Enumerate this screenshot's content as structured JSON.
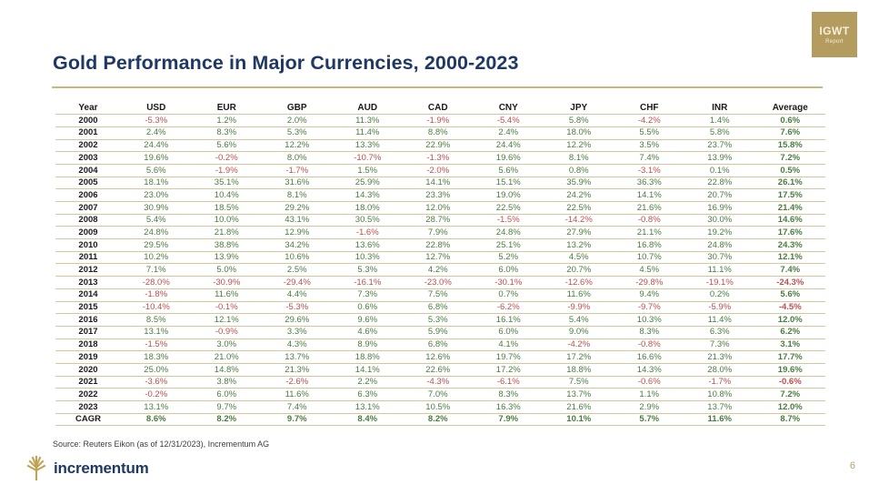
{
  "badge": {
    "title": "IGWT",
    "subtitle": "Report"
  },
  "title": "Gold Performance in Major Currencies, 2000-2023",
  "table": {
    "columns": [
      "Year",
      "USD",
      "EUR",
      "GBP",
      "AUD",
      "CAD",
      "CNY",
      "JPY",
      "CHF",
      "INR",
      "Average"
    ],
    "rows": [
      {
        "year": "2000",
        "values": [
          "-5.3%",
          "1.2%",
          "2.0%",
          "11.3%",
          "-1.9%",
          "-5.4%",
          "5.8%",
          "-4.2%",
          "1.4%",
          "0.6%"
        ]
      },
      {
        "year": "2001",
        "values": [
          "2.4%",
          "8.3%",
          "5.3%",
          "11.4%",
          "8.8%",
          "2.4%",
          "18.0%",
          "5.5%",
          "5.8%",
          "7.6%"
        ]
      },
      {
        "year": "2002",
        "values": [
          "24.4%",
          "5.6%",
          "12.2%",
          "13.3%",
          "22.9%",
          "24.4%",
          "12.2%",
          "3.5%",
          "23.7%",
          "15.8%"
        ]
      },
      {
        "year": "2003",
        "values": [
          "19.6%",
          "-0.2%",
          "8.0%",
          "-10.7%",
          "-1.3%",
          "19.6%",
          "8.1%",
          "7.4%",
          "13.9%",
          "7.2%"
        ]
      },
      {
        "year": "2004",
        "values": [
          "5.6%",
          "-1.9%",
          "-1.7%",
          "1.5%",
          "-2.0%",
          "5.6%",
          "0.8%",
          "-3.1%",
          "0.1%",
          "0.5%"
        ]
      },
      {
        "year": "2005",
        "values": [
          "18.1%",
          "35.1%",
          "31.6%",
          "25.9%",
          "14.1%",
          "15.1%",
          "35.9%",
          "36.3%",
          "22.8%",
          "26.1%"
        ]
      },
      {
        "year": "2006",
        "values": [
          "23.0%",
          "10.4%",
          "8.1%",
          "14.3%",
          "23.3%",
          "19.0%",
          "24.2%",
          "14.1%",
          "20.7%",
          "17.5%"
        ]
      },
      {
        "year": "2007",
        "values": [
          "30.9%",
          "18.5%",
          "29.2%",
          "18.0%",
          "12.0%",
          "22.5%",
          "22.5%",
          "21.6%",
          "16.9%",
          "21.4%"
        ]
      },
      {
        "year": "2008",
        "values": [
          "5.4%",
          "10.0%",
          "43.1%",
          "30.5%",
          "28.7%",
          "-1.5%",
          "-14.2%",
          "-0.8%",
          "30.0%",
          "14.6%"
        ]
      },
      {
        "year": "2009",
        "values": [
          "24.8%",
          "21.8%",
          "12.9%",
          "-1.6%",
          "7.9%",
          "24.8%",
          "27.9%",
          "21.1%",
          "19.2%",
          "17.6%"
        ]
      },
      {
        "year": "2010",
        "values": [
          "29.5%",
          "38.8%",
          "34.2%",
          "13.6%",
          "22.8%",
          "25.1%",
          "13.2%",
          "16.8%",
          "24.8%",
          "24.3%"
        ]
      },
      {
        "year": "2011",
        "values": [
          "10.2%",
          "13.9%",
          "10.6%",
          "10.3%",
          "12.7%",
          "5.2%",
          "4.5%",
          "10.7%",
          "30.7%",
          "12.1%"
        ]
      },
      {
        "year": "2012",
        "values": [
          "7.1%",
          "5.0%",
          "2.5%",
          "5.3%",
          "4.2%",
          "6.0%",
          "20.7%",
          "4.5%",
          "11.1%",
          "7.4%"
        ]
      },
      {
        "year": "2013",
        "values": [
          "-28.0%",
          "-30.9%",
          "-29.4%",
          "-16.1%",
          "-23.0%",
          "-30.1%",
          "-12.6%",
          "-29.8%",
          "-19.1%",
          "-24.3%"
        ]
      },
      {
        "year": "2014",
        "values": [
          "-1.8%",
          "11.6%",
          "4.4%",
          "7.3%",
          "7.5%",
          "0.7%",
          "11.6%",
          "9.4%",
          "0.2%",
          "5.6%"
        ]
      },
      {
        "year": "2015",
        "values": [
          "-10.4%",
          "-0.1%",
          "-5.3%",
          "0.6%",
          "6.8%",
          "-6.2%",
          "-9.9%",
          "-9.7%",
          "-5.9%",
          "-4.5%"
        ]
      },
      {
        "year": "2016",
        "values": [
          "8.5%",
          "12.1%",
          "29.6%",
          "9.6%",
          "5.3%",
          "16.1%",
          "5.4%",
          "10.3%",
          "11.4%",
          "12.0%"
        ]
      },
      {
        "year": "2017",
        "values": [
          "13.1%",
          "-0.9%",
          "3.3%",
          "4.6%",
          "5.9%",
          "6.0%",
          "9.0%",
          "8.3%",
          "6.3%",
          "6.2%"
        ]
      },
      {
        "year": "2018",
        "values": [
          "-1.5%",
          "3.0%",
          "4.3%",
          "8.9%",
          "6.8%",
          "4.1%",
          "-4.2%",
          "-0.8%",
          "7.3%",
          "3.1%"
        ]
      },
      {
        "year": "2019",
        "values": [
          "18.3%",
          "21.0%",
          "13.7%",
          "18.8%",
          "12.6%",
          "19.7%",
          "17.2%",
          "16.6%",
          "21.3%",
          "17.7%"
        ]
      },
      {
        "year": "2020",
        "values": [
          "25.0%",
          "14.8%",
          "21.3%",
          "14.1%",
          "22.6%",
          "17.2%",
          "18.8%",
          "14.3%",
          "28.0%",
          "19.6%"
        ]
      },
      {
        "year": "2021",
        "values": [
          "-3.6%",
          "3.8%",
          "-2.6%",
          "2.2%",
          "-4.3%",
          "-6.1%",
          "7.5%",
          "-0.6%",
          "-1.7%",
          "-0.6%"
        ]
      },
      {
        "year": "2022",
        "values": [
          "-0.2%",
          "6.0%",
          "11.6%",
          "6.3%",
          "7.0%",
          "8.3%",
          "13.7%",
          "1.1%",
          "10.8%",
          "7.2%"
        ]
      },
      {
        "year": "2023",
        "values": [
          "13.1%",
          "9.7%",
          "7.4%",
          "13.1%",
          "10.5%",
          "16.3%",
          "21.6%",
          "2.9%",
          "13.7%",
          "12.0%"
        ]
      },
      {
        "year": "CAGR",
        "values": [
          "8.6%",
          "8.2%",
          "9.7%",
          "8.4%",
          "8.2%",
          "7.9%",
          "10.1%",
          "5.7%",
          "11.6%",
          "8.7%"
        ]
      }
    ]
  },
  "source": "Source: Reuters Eikon (as of 12/31/2023), Incrementum AG",
  "logo": {
    "text": "incrementum"
  },
  "page_number": "6",
  "colors": {
    "positive": "#4a7c3f",
    "negative": "#bf4d4d",
    "navy": "#1f3864",
    "gold_line": "#d4c79c",
    "gold_line_strong": "#c9b87e",
    "badge_gold": "#b49b5e"
  }
}
